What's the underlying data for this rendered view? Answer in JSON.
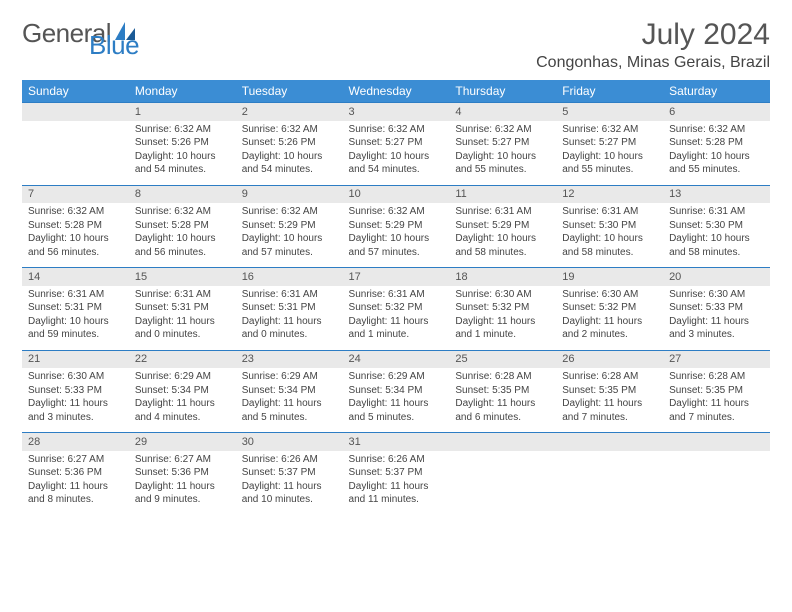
{
  "brand": {
    "name1": "General",
    "name2": "Blue"
  },
  "title": "July 2024",
  "location": "Congonhas, Minas Gerais, Brazil",
  "colors": {
    "header_bg": "#3b8dd4",
    "daynum_bg": "#e9e9e9",
    "border": "#2d7dc4",
    "text": "#333",
    "brand_blue": "#2d7dc4"
  },
  "day_headers": [
    "Sunday",
    "Monday",
    "Tuesday",
    "Wednesday",
    "Thursday",
    "Friday",
    "Saturday"
  ],
  "weeks": [
    [
      null,
      {
        "n": "1",
        "sr": "Sunrise: 6:32 AM",
        "ss": "Sunset: 5:26 PM",
        "dl": "Daylight: 10 hours and 54 minutes."
      },
      {
        "n": "2",
        "sr": "Sunrise: 6:32 AM",
        "ss": "Sunset: 5:26 PM",
        "dl": "Daylight: 10 hours and 54 minutes."
      },
      {
        "n": "3",
        "sr": "Sunrise: 6:32 AM",
        "ss": "Sunset: 5:27 PM",
        "dl": "Daylight: 10 hours and 54 minutes."
      },
      {
        "n": "4",
        "sr": "Sunrise: 6:32 AM",
        "ss": "Sunset: 5:27 PM",
        "dl": "Daylight: 10 hours and 55 minutes."
      },
      {
        "n": "5",
        "sr": "Sunrise: 6:32 AM",
        "ss": "Sunset: 5:27 PM",
        "dl": "Daylight: 10 hours and 55 minutes."
      },
      {
        "n": "6",
        "sr": "Sunrise: 6:32 AM",
        "ss": "Sunset: 5:28 PM",
        "dl": "Daylight: 10 hours and 55 minutes."
      }
    ],
    [
      {
        "n": "7",
        "sr": "Sunrise: 6:32 AM",
        "ss": "Sunset: 5:28 PM",
        "dl": "Daylight: 10 hours and 56 minutes."
      },
      {
        "n": "8",
        "sr": "Sunrise: 6:32 AM",
        "ss": "Sunset: 5:28 PM",
        "dl": "Daylight: 10 hours and 56 minutes."
      },
      {
        "n": "9",
        "sr": "Sunrise: 6:32 AM",
        "ss": "Sunset: 5:29 PM",
        "dl": "Daylight: 10 hours and 57 minutes."
      },
      {
        "n": "10",
        "sr": "Sunrise: 6:32 AM",
        "ss": "Sunset: 5:29 PM",
        "dl": "Daylight: 10 hours and 57 minutes."
      },
      {
        "n": "11",
        "sr": "Sunrise: 6:31 AM",
        "ss": "Sunset: 5:29 PM",
        "dl": "Daylight: 10 hours and 58 minutes."
      },
      {
        "n": "12",
        "sr": "Sunrise: 6:31 AM",
        "ss": "Sunset: 5:30 PM",
        "dl": "Daylight: 10 hours and 58 minutes."
      },
      {
        "n": "13",
        "sr": "Sunrise: 6:31 AM",
        "ss": "Sunset: 5:30 PM",
        "dl": "Daylight: 10 hours and 58 minutes."
      }
    ],
    [
      {
        "n": "14",
        "sr": "Sunrise: 6:31 AM",
        "ss": "Sunset: 5:31 PM",
        "dl": "Daylight: 10 hours and 59 minutes."
      },
      {
        "n": "15",
        "sr": "Sunrise: 6:31 AM",
        "ss": "Sunset: 5:31 PM",
        "dl": "Daylight: 11 hours and 0 minutes."
      },
      {
        "n": "16",
        "sr": "Sunrise: 6:31 AM",
        "ss": "Sunset: 5:31 PM",
        "dl": "Daylight: 11 hours and 0 minutes."
      },
      {
        "n": "17",
        "sr": "Sunrise: 6:31 AM",
        "ss": "Sunset: 5:32 PM",
        "dl": "Daylight: 11 hours and 1 minute."
      },
      {
        "n": "18",
        "sr": "Sunrise: 6:30 AM",
        "ss": "Sunset: 5:32 PM",
        "dl": "Daylight: 11 hours and 1 minute."
      },
      {
        "n": "19",
        "sr": "Sunrise: 6:30 AM",
        "ss": "Sunset: 5:32 PM",
        "dl": "Daylight: 11 hours and 2 minutes."
      },
      {
        "n": "20",
        "sr": "Sunrise: 6:30 AM",
        "ss": "Sunset: 5:33 PM",
        "dl": "Daylight: 11 hours and 3 minutes."
      }
    ],
    [
      {
        "n": "21",
        "sr": "Sunrise: 6:30 AM",
        "ss": "Sunset: 5:33 PM",
        "dl": "Daylight: 11 hours and 3 minutes."
      },
      {
        "n": "22",
        "sr": "Sunrise: 6:29 AM",
        "ss": "Sunset: 5:34 PM",
        "dl": "Daylight: 11 hours and 4 minutes."
      },
      {
        "n": "23",
        "sr": "Sunrise: 6:29 AM",
        "ss": "Sunset: 5:34 PM",
        "dl": "Daylight: 11 hours and 5 minutes."
      },
      {
        "n": "24",
        "sr": "Sunrise: 6:29 AM",
        "ss": "Sunset: 5:34 PM",
        "dl": "Daylight: 11 hours and 5 minutes."
      },
      {
        "n": "25",
        "sr": "Sunrise: 6:28 AM",
        "ss": "Sunset: 5:35 PM",
        "dl": "Daylight: 11 hours and 6 minutes."
      },
      {
        "n": "26",
        "sr": "Sunrise: 6:28 AM",
        "ss": "Sunset: 5:35 PM",
        "dl": "Daylight: 11 hours and 7 minutes."
      },
      {
        "n": "27",
        "sr": "Sunrise: 6:28 AM",
        "ss": "Sunset: 5:35 PM",
        "dl": "Daylight: 11 hours and 7 minutes."
      }
    ],
    [
      {
        "n": "28",
        "sr": "Sunrise: 6:27 AM",
        "ss": "Sunset: 5:36 PM",
        "dl": "Daylight: 11 hours and 8 minutes."
      },
      {
        "n": "29",
        "sr": "Sunrise: 6:27 AM",
        "ss": "Sunset: 5:36 PM",
        "dl": "Daylight: 11 hours and 9 minutes."
      },
      {
        "n": "30",
        "sr": "Sunrise: 6:26 AM",
        "ss": "Sunset: 5:37 PM",
        "dl": "Daylight: 11 hours and 10 minutes."
      },
      {
        "n": "31",
        "sr": "Sunrise: 6:26 AM",
        "ss": "Sunset: 5:37 PM",
        "dl": "Daylight: 11 hours and 11 minutes."
      },
      null,
      null,
      null
    ]
  ]
}
